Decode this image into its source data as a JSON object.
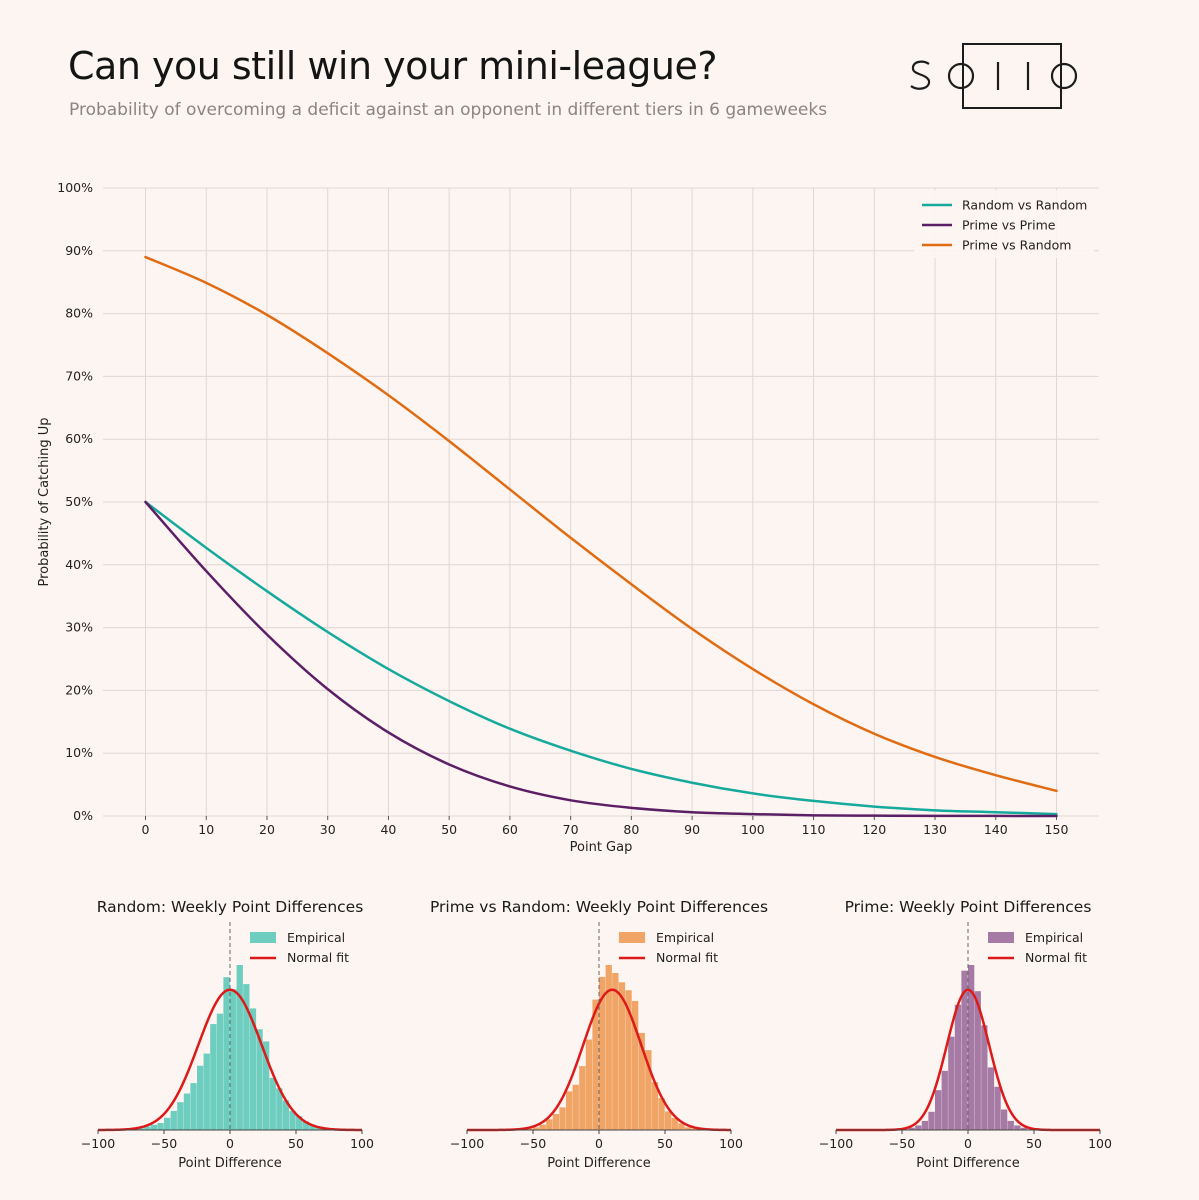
{
  "header": {
    "title": "Can you still win your mini-league?",
    "subtitle": "Probability of overcoming a deficit against an opponent in different tiers in 6 gameweeks",
    "logo_text": "solio"
  },
  "colors": {
    "background": "#fdf5f1",
    "random": "#16aa9c",
    "prime": "#5c1f66",
    "prime_vs_random": "#e06c14",
    "random_hist": "#6dcdbf",
    "pvr_hist": "#f0a465",
    "prime_hist": "#a57aa5",
    "normal_fit": "#dd1a1a"
  },
  "chart_data": [
    {
      "type": "line",
      "title": "",
      "xlabel": "Point Gap",
      "ylabel": "Probability of Catching Up",
      "xlim": [
        -7,
        150
      ],
      "ylim": [
        0,
        100
      ],
      "xticks": [
        0,
        10,
        20,
        30,
        40,
        50,
        60,
        70,
        80,
        90,
        100,
        110,
        120,
        130,
        140,
        150
      ],
      "yticks": [
        0,
        10,
        20,
        30,
        40,
        50,
        60,
        70,
        80,
        90,
        100
      ],
      "ytick_format": "%",
      "grid": true,
      "legend": "top-right",
      "x": [
        0,
        10,
        20,
        30,
        40,
        50,
        60,
        70,
        80,
        90,
        100,
        110,
        120,
        130,
        140,
        150
      ],
      "series": [
        {
          "name": "Random vs Random",
          "color": "#16aa9c",
          "values": [
            50.0,
            42.7,
            35.8,
            29.3,
            23.4,
            18.3,
            13.9,
            10.4,
            7.5,
            5.3,
            3.6,
            2.4,
            1.5,
            0.9,
            0.6,
            0.3
          ]
        },
        {
          "name": "Prime vs Prime",
          "color": "#5c1f66",
          "values": [
            50.0,
            39.0,
            28.9,
            20.2,
            13.3,
            8.2,
            4.7,
            2.5,
            1.3,
            0.6,
            0.3,
            0.1,
            0.05,
            0.02,
            0.01,
            0.0
          ]
        },
        {
          "name": "Prime vs Random",
          "color": "#e06c14",
          "values": [
            89.0,
            84.9,
            79.8,
            73.7,
            67.0,
            59.7,
            52.0,
            44.3,
            36.9,
            29.8,
            23.4,
            17.8,
            13.1,
            9.4,
            6.5,
            4.0
          ]
        }
      ]
    },
    {
      "type": "bar",
      "title": "Random: Weekly Point Differences",
      "xlabel": "Point Difference",
      "xlim": [
        -100,
        100
      ],
      "xticks": [
        -100,
        -50,
        0,
        50,
        100
      ],
      "legend": "top-right",
      "legend_entries": [
        "Empirical",
        "Normal fit"
      ],
      "hist_color": "#6dcdbf",
      "fit": {
        "mean": 0,
        "std": 24,
        "color": "#dd1a1a"
      },
      "bin_edges": [
        -80,
        -75,
        -70,
        -65,
        -60,
        -55,
        -50,
        -45,
        -40,
        -35,
        -30,
        -25,
        -20,
        -15,
        -10,
        -5,
        0,
        5,
        10,
        15,
        20,
        25,
        30,
        35,
        40,
        45,
        50,
        55,
        60,
        65,
        70,
        75,
        80
      ],
      "values": [
        0.3,
        0.5,
        1,
        2,
        3,
        4,
        7,
        11,
        16,
        21,
        27,
        37,
        44,
        61,
        67,
        88,
        81,
        95,
        84,
        70,
        58,
        51,
        30,
        24,
        17,
        11,
        8,
        5,
        3,
        2,
        1,
        0.5
      ]
    },
    {
      "type": "bar",
      "title": "Prime vs Random: Weekly Point Differences",
      "xlabel": "Point Difference",
      "xlim": [
        -100,
        100
      ],
      "xticks": [
        -100,
        -50,
        0,
        50,
        100
      ],
      "legend": "top-right",
      "legend_entries": [
        "Empirical",
        "Normal fit"
      ],
      "hist_color": "#f0a465",
      "fit": {
        "mean": 10,
        "std": 22,
        "color": "#dd1a1a"
      },
      "bin_edges": [
        -60,
        -55,
        -50,
        -45,
        -40,
        -35,
        -30,
        -25,
        -20,
        -15,
        -10,
        -5,
        0,
        5,
        10,
        15,
        20,
        25,
        30,
        35,
        40,
        45,
        50,
        55,
        60,
        65,
        70,
        75
      ],
      "values": [
        0.3,
        1,
        2,
        4,
        8,
        12,
        17,
        29,
        34,
        48,
        68,
        98,
        115,
        124,
        118,
        111,
        105,
        97,
        73,
        60,
        36,
        24,
        14,
        9,
        5,
        2,
        1
      ]
    },
    {
      "type": "bar",
      "title": "Prime: Weekly Point Differences",
      "xlabel": "Point Difference",
      "xlim": [
        -100,
        100
      ],
      "xticks": [
        -100,
        -50,
        0,
        50,
        100
      ],
      "legend": "top-right",
      "legend_entries": [
        "Empirical",
        "Normal fit"
      ],
      "hist_color": "#a57aa5",
      "fit": {
        "mean": 0,
        "std": 16,
        "color": "#dd1a1a"
      },
      "bin_edges": [
        -50,
        -45,
        -40,
        -35,
        -30,
        -25,
        -20,
        -15,
        -10,
        -5,
        0,
        5,
        10,
        15,
        20,
        25,
        30,
        35,
        40,
        45,
        50
      ],
      "values": [
        0.5,
        2,
        4,
        8,
        16,
        35,
        52,
        82,
        110,
        140,
        145,
        122,
        92,
        55,
        38,
        18,
        8,
        4,
        2,
        0.5
      ]
    }
  ]
}
